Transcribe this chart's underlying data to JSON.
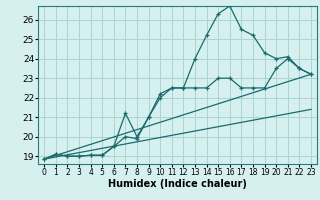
{
  "xlabel": "Humidex (Indice chaleur)",
  "xlim": [
    -0.5,
    23.5
  ],
  "ylim": [
    18.6,
    26.7
  ],
  "xticks": [
    0,
    1,
    2,
    3,
    4,
    5,
    6,
    7,
    8,
    9,
    10,
    11,
    12,
    13,
    14,
    15,
    16,
    17,
    18,
    19,
    20,
    21,
    22,
    23
  ],
  "yticks": [
    19,
    20,
    21,
    22,
    23,
    24,
    25,
    26
  ],
  "bg_color": "#d6f0f0",
  "grid_color": "#aad4d4",
  "line_color": "#1a6b6b",
  "line1_x": [
    0,
    1,
    2,
    3,
    4,
    5,
    6,
    7,
    8,
    9,
    10,
    11,
    12,
    13,
    14,
    15,
    16,
    17,
    18,
    19,
    20,
    21,
    22,
    23
  ],
  "line1_y": [
    18.85,
    19.1,
    19.0,
    19.0,
    19.05,
    19.05,
    19.5,
    20.0,
    19.9,
    21.0,
    22.2,
    22.5,
    22.5,
    22.5,
    22.5,
    23.0,
    23.0,
    22.5,
    22.5,
    22.5,
    23.5,
    24.0,
    23.5,
    23.2
  ],
  "line2_x": [
    0,
    1,
    2,
    3,
    4,
    5,
    6,
    7,
    8,
    9,
    10,
    11,
    12,
    13,
    14,
    15,
    16,
    17,
    18,
    19,
    20,
    21,
    22,
    23
  ],
  "line2_y": [
    18.85,
    19.1,
    19.0,
    19.0,
    19.05,
    19.05,
    19.5,
    21.2,
    20.0,
    21.0,
    22.0,
    22.5,
    22.5,
    24.0,
    25.2,
    26.3,
    26.7,
    25.5,
    25.2,
    24.3,
    24.0,
    24.1,
    23.5,
    23.2
  ],
  "line3_x": [
    0,
    23
  ],
  "line3_y": [
    18.85,
    23.2
  ],
  "line4_x": [
    0,
    23
  ],
  "line4_y": [
    18.85,
    21.4
  ]
}
